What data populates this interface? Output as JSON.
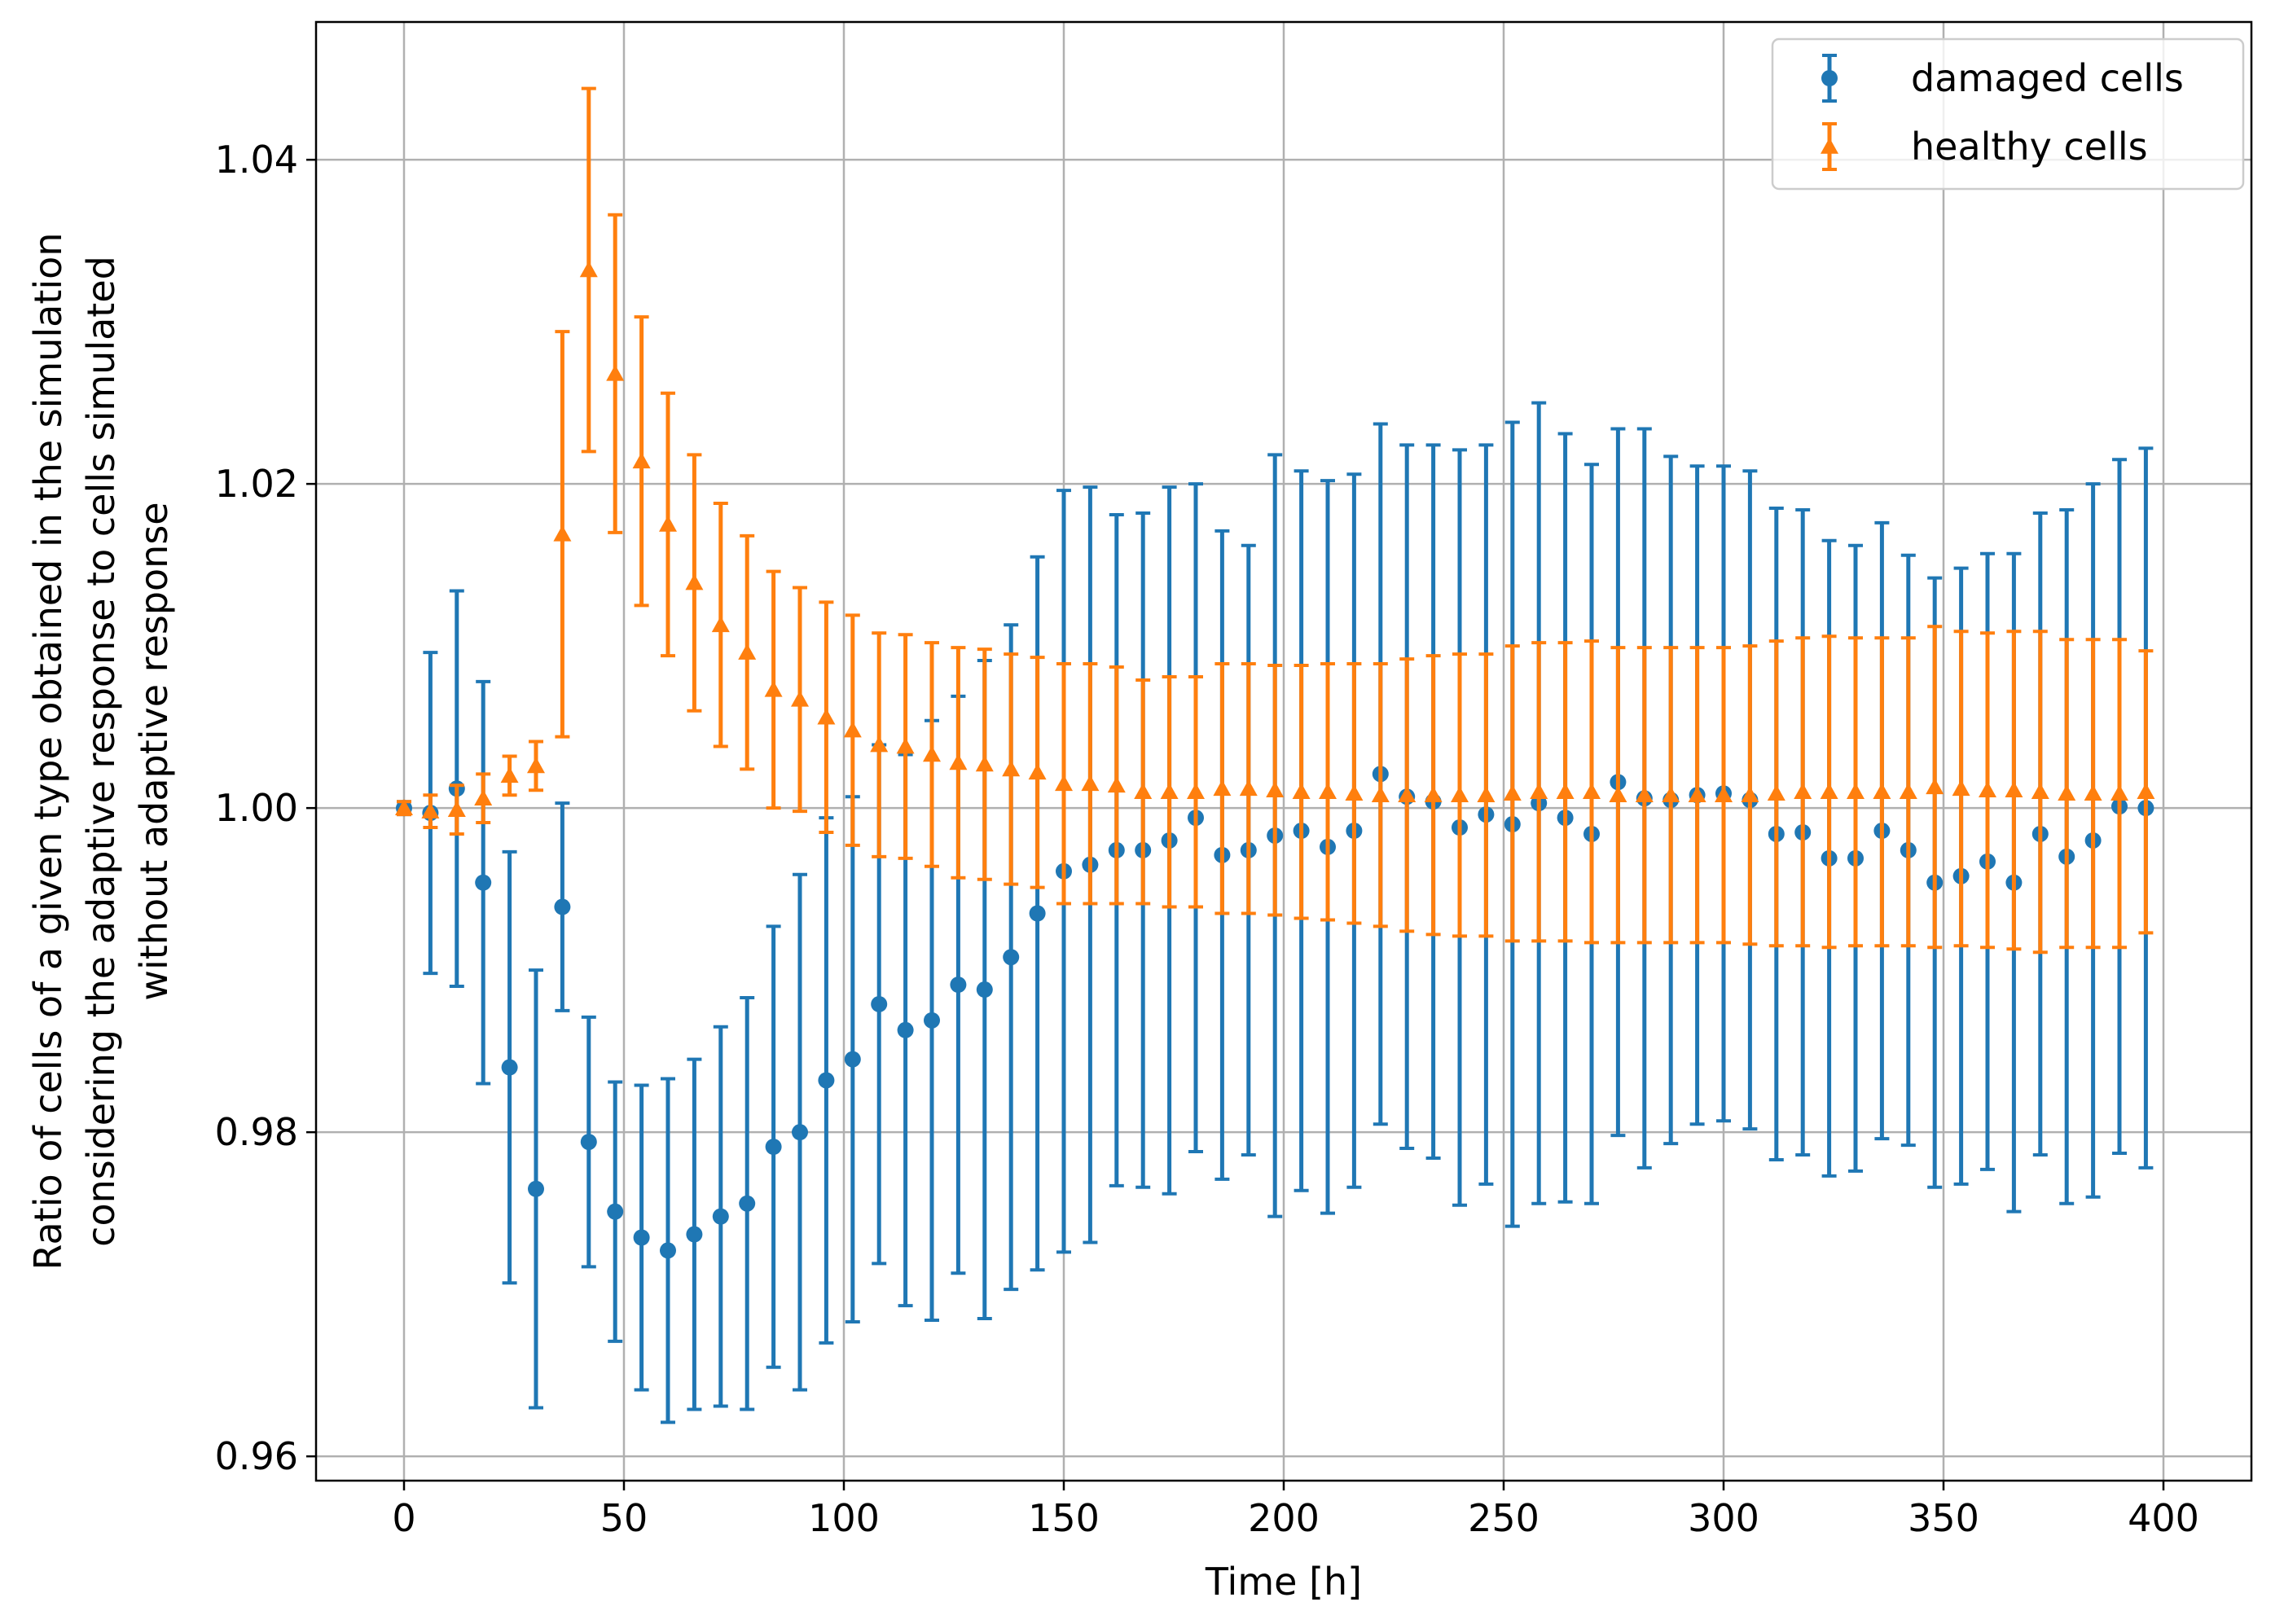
{
  "chart_data": {
    "type": "errorbar",
    "title": "",
    "xlabel": "Time [h]",
    "ylabel_lines": [
      "Ratio of cells of a given type obtained in the simulation",
      "considering the adaptive response to cells simulated",
      "without adaptive response"
    ],
    "xlim": [
      -20,
      420
    ],
    "ylim": [
      0.9585,
      1.0485
    ],
    "xticks": [
      0,
      50,
      100,
      150,
      200,
      250,
      300,
      350,
      400
    ],
    "xtick_labels": [
      "0",
      "50",
      "100",
      "150",
      "200",
      "250",
      "300",
      "350",
      "400"
    ],
    "yticks": [
      0.96,
      0.98,
      1.0,
      1.02,
      1.04
    ],
    "ytick_labels": [
      "0.96",
      "0.98",
      "1.00",
      "1.02",
      "1.04"
    ],
    "grid": true,
    "legend_position": "top-right",
    "x": [
      0,
      6,
      12,
      18,
      24,
      30,
      36,
      42,
      48,
      54,
      60,
      66,
      72,
      78,
      84,
      90,
      96,
      102,
      108,
      114,
      120,
      126,
      132,
      138,
      144,
      150,
      156,
      162,
      168,
      174,
      180,
      186,
      192,
      198,
      204,
      210,
      216,
      222,
      228,
      234,
      240,
      246,
      252,
      258,
      264,
      270,
      276,
      282,
      288,
      294,
      300,
      306,
      312,
      318,
      324,
      330,
      336,
      342,
      348,
      354,
      360,
      366,
      372,
      378,
      384,
      390,
      396
    ],
    "series": [
      {
        "name": "damaged cells",
        "color": "#1f77b4",
        "marker": "circle",
        "values": [
          1.0,
          0.9997,
          1.0012,
          0.9954,
          0.984,
          0.9765,
          0.9939,
          0.9794,
          0.9751,
          0.9735,
          0.9727,
          0.9737,
          0.9748,
          0.9756,
          0.9791,
          0.98,
          0.9832,
          0.9845,
          0.9879,
          0.9863,
          0.9869,
          0.9891,
          0.9888,
          0.9908,
          0.9935,
          0.9961,
          0.9965,
          0.9974,
          0.9974,
          0.998,
          0.9994,
          0.9971,
          0.9974,
          0.9983,
          0.9986,
          0.9976,
          0.9986,
          1.0021,
          1.0007,
          1.0004,
          0.9988,
          0.9996,
          0.999,
          1.0003,
          0.9994,
          0.9984,
          1.0016,
          1.0006,
          1.0005,
          1.0008,
          1.0009,
          1.0005,
          0.9984,
          0.9985,
          0.9969,
          0.9969,
          0.9986,
          0.9974,
          0.9954,
          0.9958,
          0.9967,
          0.9954,
          0.9984,
          0.997,
          0.998,
          1.0001,
          1.0
        ],
        "errors": [
          0.0004,
          0.0099,
          0.0122,
          0.0124,
          0.0133,
          0.0135,
          0.0064,
          0.0077,
          0.008,
          0.0094,
          0.0106,
          0.0108,
          0.0117,
          0.0127,
          0.0136,
          0.0159,
          0.0162,
          0.0162,
          0.016,
          0.017,
          0.0185,
          0.0178,
          0.0203,
          0.0205,
          0.022,
          0.0235,
          0.0233,
          0.0207,
          0.0208,
          0.0218,
          0.0206,
          0.02,
          0.0188,
          0.0235,
          0.0222,
          0.0226,
          0.022,
          0.0216,
          0.0217,
          0.022,
          0.0233,
          0.0228,
          0.0248,
          0.0247,
          0.0237,
          0.0228,
          0.0218,
          0.0228,
          0.0212,
          0.0203,
          0.0202,
          0.0203,
          0.0201,
          0.0199,
          0.0196,
          0.0193,
          0.019,
          0.0182,
          0.0188,
          0.019,
          0.019,
          0.0203,
          0.0198,
          0.0214,
          0.022,
          0.0214,
          0.0222
        ]
      },
      {
        "name": "healthy cells",
        "color": "#ff7f0e",
        "marker": "triangle",
        "values": [
          1.0,
          0.9998,
          0.9999,
          1.0006,
          1.002,
          1.0026,
          1.0169,
          1.0332,
          1.0268,
          1.0214,
          1.0175,
          1.0139,
          1.0113,
          1.0096,
          1.0073,
          1.0067,
          1.0056,
          1.0048,
          1.0039,
          1.0038,
          1.0033,
          1.0028,
          1.0027,
          1.0024,
          1.0022,
          1.0015,
          1.0015,
          1.0014,
          1.001,
          1.001,
          1.001,
          1.0012,
          1.0012,
          1.0011,
          1.001,
          1.001,
          1.0009,
          1.0008,
          1.0008,
          1.0008,
          1.0008,
          1.0008,
          1.0009,
          1.001,
          1.001,
          1.001,
          1.0008,
          1.0008,
          1.0008,
          1.0008,
          1.0008,
          1.0008,
          1.0009,
          1.001,
          1.001,
          1.001,
          1.001,
          1.001,
          1.0013,
          1.0012,
          1.0011,
          1.0011,
          1.001,
          1.0009,
          1.0009,
          1.0009,
          1.001
        ],
        "errors": [
          0.0004,
          0.001,
          0.0015,
          0.0015,
          0.0012,
          0.0015,
          0.0125,
          0.0112,
          0.0098,
          0.0089,
          0.0081,
          0.0079,
          0.0075,
          0.0072,
          0.0073,
          0.0069,
          0.0071,
          0.0071,
          0.0069,
          0.0069,
          0.0069,
          0.0071,
          0.0071,
          0.0071,
          0.0071,
          0.0074,
          0.0074,
          0.0073,
          0.0069,
          0.0071,
          0.0071,
          0.0077,
          0.0077,
          0.0077,
          0.0078,
          0.0079,
          0.008,
          0.0081,
          0.0084,
          0.0086,
          0.0087,
          0.0087,
          0.0091,
          0.0092,
          0.0092,
          0.0093,
          0.0091,
          0.0091,
          0.0091,
          0.0091,
          0.0091,
          0.0092,
          0.0094,
          0.0095,
          0.0096,
          0.0095,
          0.0095,
          0.0095,
          0.0099,
          0.0097,
          0.0097,
          0.0098,
          0.0099,
          0.0095,
          0.0095,
          0.0095,
          0.0087
        ]
      }
    ]
  }
}
